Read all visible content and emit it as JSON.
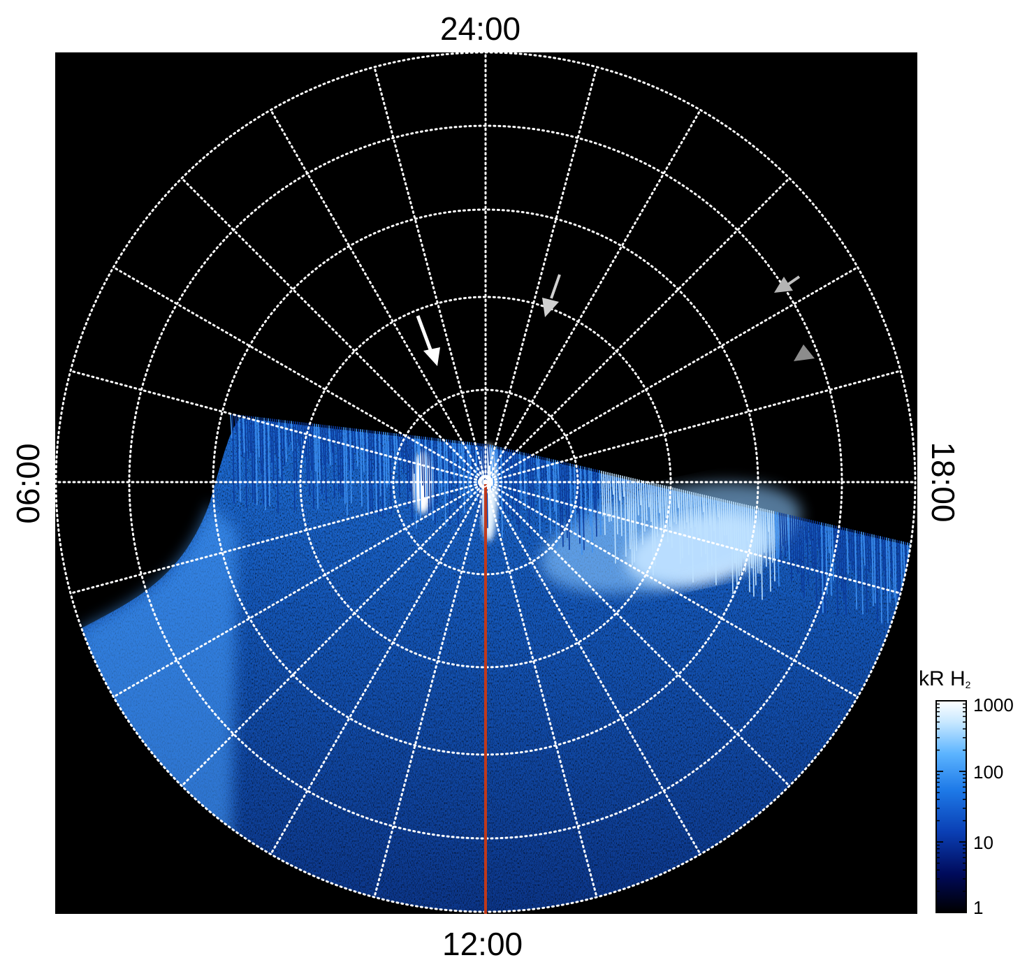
{
  "labels": {
    "top": "24:00",
    "bottom": "12:00",
    "left": "06:00",
    "right": "18:00"
  },
  "colorbar": {
    "unit": "kR H",
    "unit_sub": "2",
    "ticks": [
      "1000",
      "100",
      "10",
      "1"
    ],
    "scale": "log",
    "range": [
      1,
      1000
    ],
    "colors": [
      "#000000",
      "#000a5a",
      "#0a3fb4",
      "#1e7ae8",
      "#5cb4ff",
      "#c8e8ff",
      "#ffffff"
    ]
  },
  "colors": {
    "background": "#000000",
    "grid": "#ffffff",
    "meridian_line": "#c0391a",
    "arrow_primary": "#ffffff",
    "arrow_secondary": "#b4b4b4",
    "arrow_tertiary": "#8a8a8a"
  },
  "arrows": [
    {
      "name": "white-arrow",
      "color": "#ffffff"
    },
    {
      "name": "light-gray-arrow",
      "color": "#c8c8c8"
    },
    {
      "name": "gray-arrow-upper",
      "color": "#b0b0b0"
    },
    {
      "name": "gray-arrow-lower",
      "color": "#8c8c8c"
    }
  ]
}
